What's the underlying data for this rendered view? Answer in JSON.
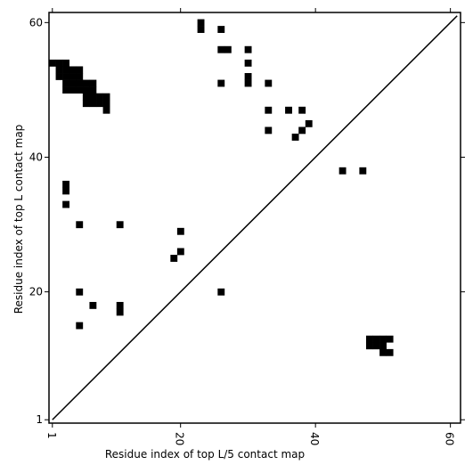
{
  "chart_data": {
    "type": "heatmap",
    "title": "",
    "xlabel": "Residue index of top L/5 contact map",
    "ylabel": "Residue index of top L contact map",
    "xlim": [
      0.5,
      61.5
    ],
    "ylim": [
      0.5,
      61.5
    ],
    "x_ticks": [
      {
        "value": 1,
        "label": "1"
      },
      {
        "value": 20,
        "label": "20"
      },
      {
        "value": 40,
        "label": "40"
      },
      {
        "value": 60,
        "label": "60"
      }
    ],
    "y_ticks": [
      {
        "value": 1,
        "label": "1"
      },
      {
        "value": 20,
        "label": "20"
      },
      {
        "value": 40,
        "label": "40"
      },
      {
        "value": 60,
        "label": "60"
      }
    ],
    "diagonal": [
      [
        1,
        1
      ],
      [
        61,
        61
      ]
    ],
    "cell_color": "#000000",
    "cells": [
      [
        1,
        54
      ],
      [
        2,
        54
      ],
      [
        3,
        54
      ],
      [
        2,
        53
      ],
      [
        3,
        53
      ],
      [
        4,
        53
      ],
      [
        5,
        53
      ],
      [
        2,
        52
      ],
      [
        3,
        52
      ],
      [
        4,
        52
      ],
      [
        5,
        52
      ],
      [
        3,
        51
      ],
      [
        4,
        51
      ],
      [
        5,
        51
      ],
      [
        6,
        51
      ],
      [
        7,
        51
      ],
      [
        3,
        50
      ],
      [
        4,
        50
      ],
      [
        5,
        50
      ],
      [
        6,
        50
      ],
      [
        7,
        50
      ],
      [
        6,
        49
      ],
      [
        7,
        49
      ],
      [
        8,
        49
      ],
      [
        9,
        49
      ],
      [
        6,
        48
      ],
      [
        7,
        48
      ],
      [
        8,
        48
      ],
      [
        9,
        48
      ],
      [
        9,
        47
      ],
      [
        3,
        36
      ],
      [
        3,
        35
      ],
      [
        3,
        33
      ],
      [
        5,
        30
      ],
      [
        11,
        30
      ],
      [
        5,
        20
      ],
      [
        7,
        18
      ],
      [
        11,
        18
      ],
      [
        11,
        17
      ],
      [
        5,
        15
      ],
      [
        23,
        60
      ],
      [
        23,
        59
      ],
      [
        26,
        59
      ],
      [
        26,
        56
      ],
      [
        27,
        56
      ],
      [
        30,
        56
      ],
      [
        30,
        54
      ],
      [
        30,
        52
      ],
      [
        30,
        51
      ],
      [
        26,
        51
      ],
      [
        33,
        51
      ],
      [
        33,
        47
      ],
      [
        36,
        47
      ],
      [
        38,
        47
      ],
      [
        39,
        45
      ],
      [
        33,
        44
      ],
      [
        38,
        44
      ],
      [
        37,
        43
      ],
      [
        44,
        38
      ],
      [
        47,
        38
      ],
      [
        20,
        29
      ],
      [
        20,
        26
      ],
      [
        19,
        25
      ],
      [
        26,
        20
      ],
      [
        48,
        13
      ],
      [
        49,
        13
      ],
      [
        50,
        13
      ],
      [
        51,
        13
      ],
      [
        48,
        12
      ],
      [
        49,
        12
      ],
      [
        50,
        12
      ],
      [
        50,
        11
      ],
      [
        51,
        11
      ]
    ]
  }
}
